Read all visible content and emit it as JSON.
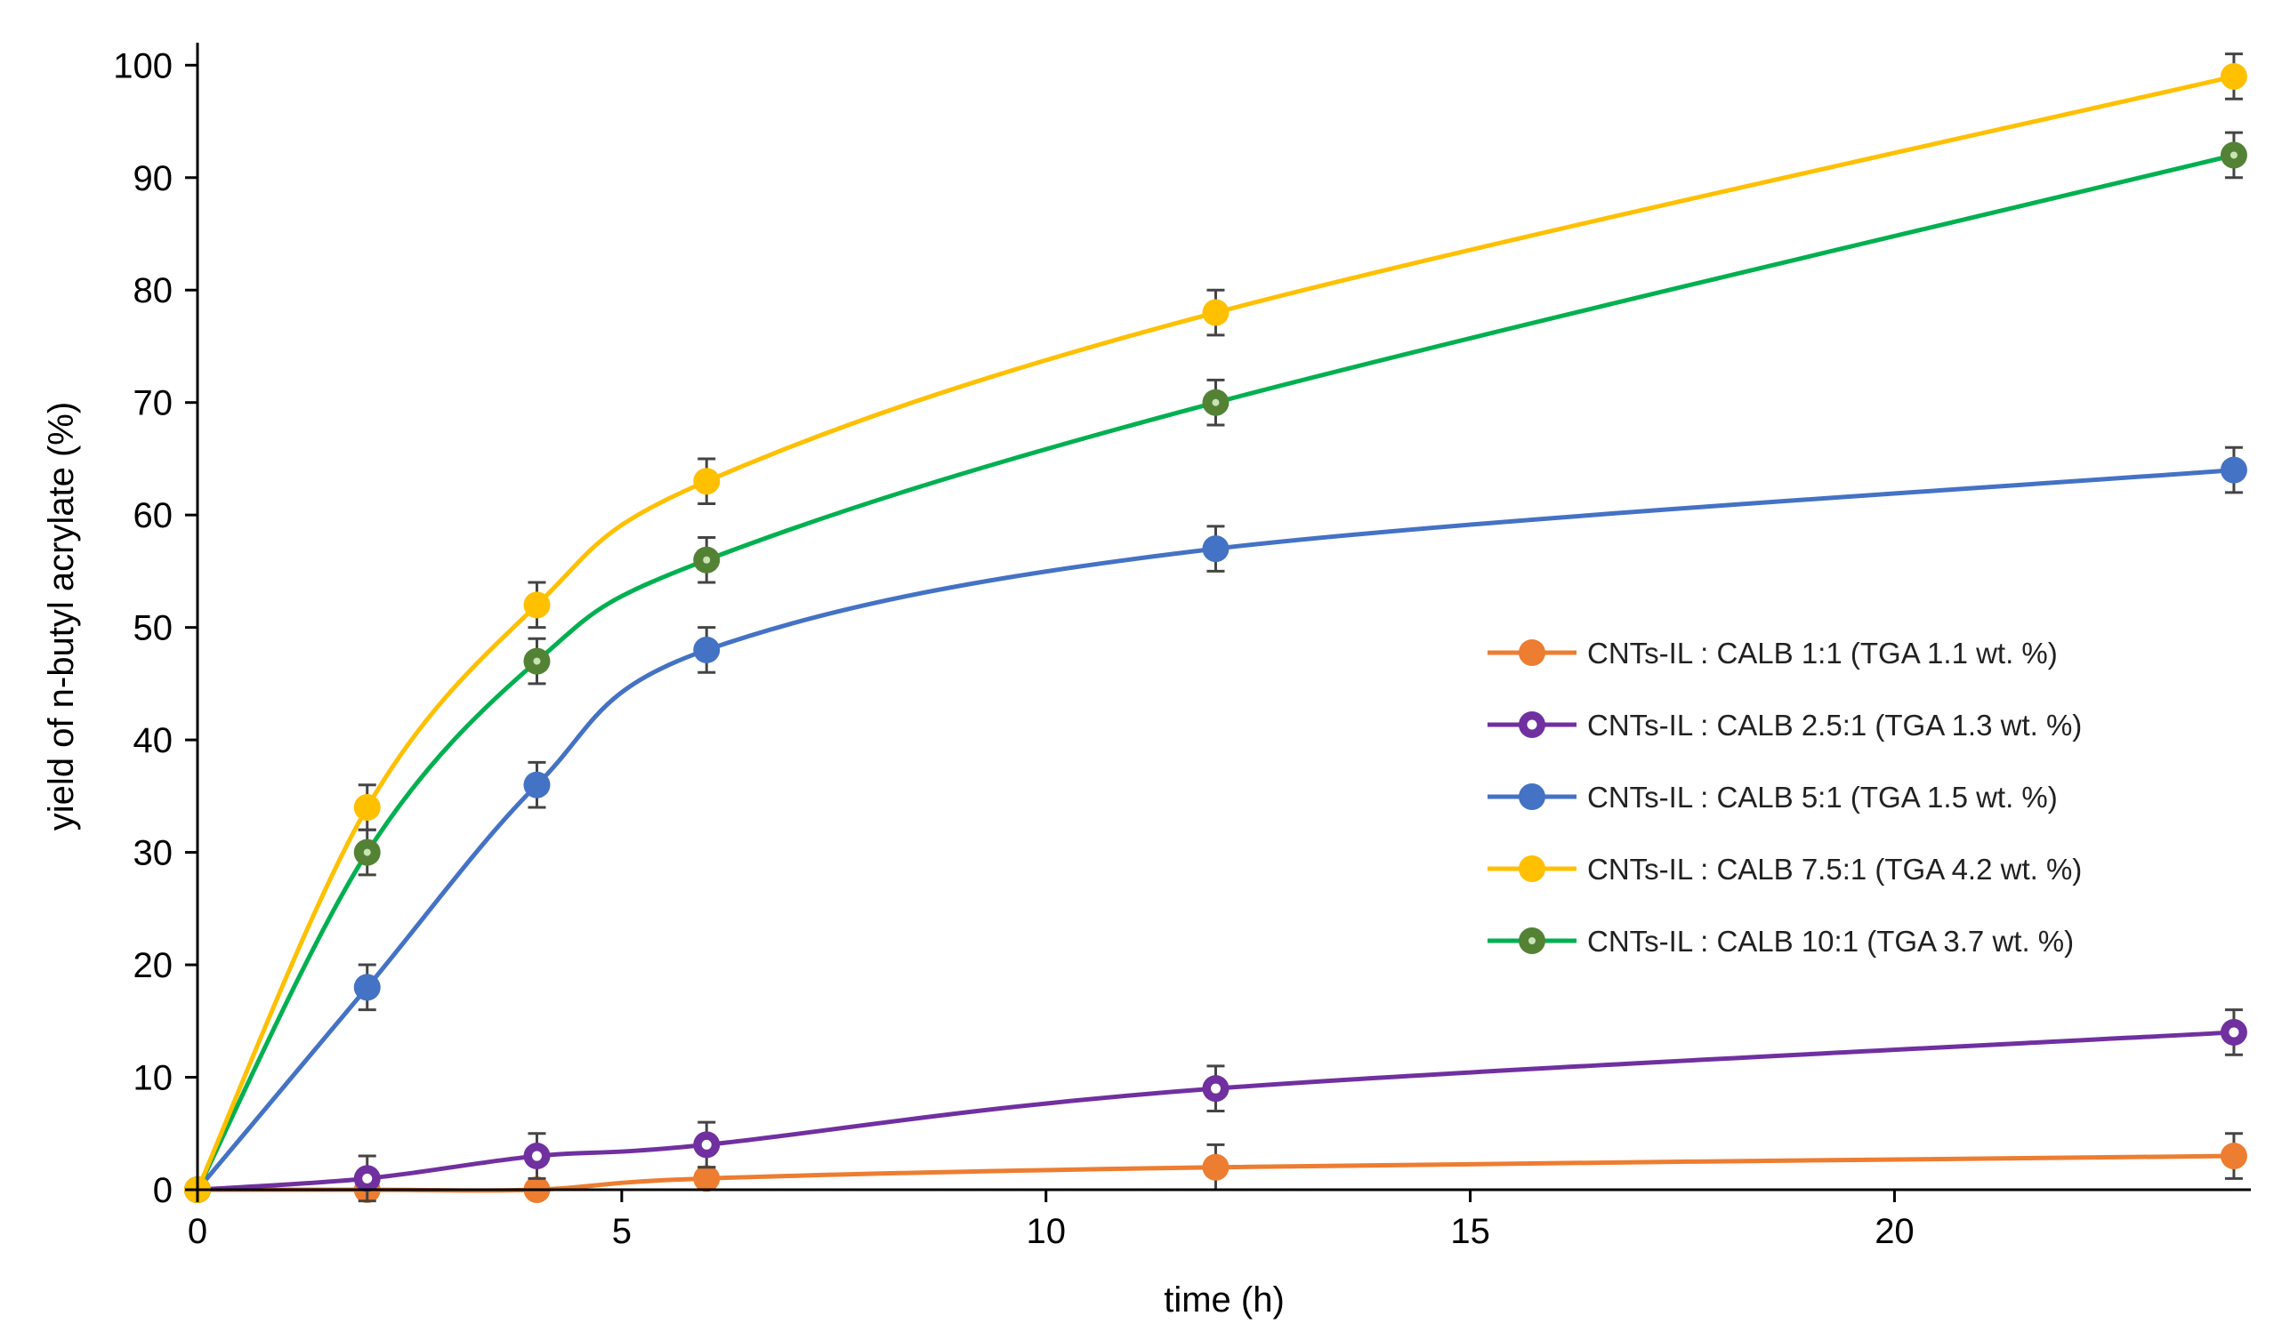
{
  "chart_data": {
    "type": "line",
    "title": "",
    "xlabel": "time (h)",
    "ylabel": "yield of n-butyl acrylate (%)",
    "xlim": [
      0,
      24.2
    ],
    "ylim": [
      0,
      102
    ],
    "xticks": [
      0,
      5,
      10,
      15,
      20
    ],
    "yticks": [
      0,
      10,
      20,
      30,
      40,
      50,
      60,
      70,
      80,
      90,
      100
    ],
    "grid": false,
    "legend_position": "center-right",
    "x": [
      0,
      2,
      4,
      6,
      12,
      24
    ],
    "series": [
      {
        "name": "CNTs-IL : CALB 1:1 (TGA 1.1 wt. %)",
        "color": "#ED7D31",
        "marker": "filled",
        "values": [
          0,
          0,
          0,
          1,
          2,
          3
        ],
        "errors": [
          0,
          0,
          0,
          1,
          2,
          2
        ]
      },
      {
        "name": "CNTs-IL : CALB 2.5:1 (TGA 1.3 wt. %)",
        "color": "#7030A0",
        "marker": "ring",
        "values": [
          0,
          1,
          3,
          4,
          9,
          14
        ],
        "errors": [
          0,
          2,
          2,
          2,
          2,
          2
        ]
      },
      {
        "name": "CNTs-IL : CALB 5:1 (TGA 1.5 wt. %)",
        "color": "#4472C4",
        "marker": "filled",
        "values": [
          0,
          18,
          36,
          48,
          57,
          64
        ],
        "errors": [
          0,
          2,
          2,
          2,
          2,
          2
        ]
      },
      {
        "name": "CNTs-IL : CALB 7.5:1 (TGA 4.2 wt. %)",
        "color": "#FFC000",
        "marker": "filled",
        "values": [
          0,
          34,
          52,
          63,
          78,
          99
        ],
        "errors": [
          0,
          2,
          2,
          2,
          2,
          2
        ]
      },
      {
        "name": "CNTs-IL : CALB 10:1 (TGA 3.7 wt. %)",
        "color": "#00B050",
        "marker": "ring-green",
        "values": [
          0,
          30,
          47,
          56,
          70,
          92
        ],
        "errors": [
          0,
          2,
          2,
          2,
          2,
          2
        ]
      }
    ]
  }
}
